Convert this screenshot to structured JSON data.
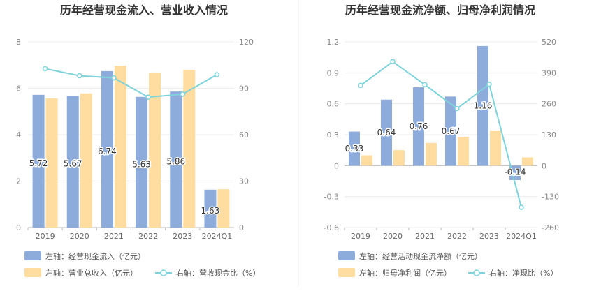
{
  "colors": {
    "bar1": "#8eacdb",
    "bar2": "#ffdda1",
    "line": "#7dd3d9",
    "grid": "#ececec",
    "axis": "#bbbbbb"
  },
  "chart_data": [
    {
      "type": "bar",
      "title": "历年经营现金流入、营业收入情况",
      "categories": [
        "2019",
        "2020",
        "2021",
        "2022",
        "2023",
        "2024Q1"
      ],
      "left_axis": {
        "ylim": [
          0,
          8
        ],
        "ticks": [
          "0",
          "2",
          "4",
          "6",
          "8"
        ]
      },
      "right_axis": {
        "ylim": [
          0,
          120
        ],
        "ticks": [
          "0",
          "30",
          "60",
          "90",
          "120"
        ]
      },
      "series": [
        {
          "name": "左轴：经营现金流入（亿元）",
          "axis": "left",
          "type": "bar",
          "values": [
            5.72,
            5.67,
            6.74,
            5.63,
            5.86,
            1.63
          ],
          "labels": [
            "5.72",
            "5.67",
            "6.74",
            "5.63",
            "5.86",
            "1.63"
          ]
        },
        {
          "name": "左轴：营业总收入（亿元）",
          "axis": "left",
          "type": "bar",
          "values": [
            5.57,
            5.78,
            6.97,
            6.68,
            6.8,
            1.65
          ]
        },
        {
          "name": "右轴：营收现金比（%）",
          "axis": "right",
          "type": "line",
          "values": [
            102.7,
            98.1,
            96.7,
            84.3,
            86.2,
            98.8
          ]
        }
      ]
    },
    {
      "type": "bar",
      "title": "历年经营现金流净额、归母净利润情况",
      "categories": [
        "2019",
        "2020",
        "2021",
        "2022",
        "2023",
        "2024Q1"
      ],
      "left_axis": {
        "ylim": [
          -0.6,
          1.2
        ],
        "ticks": [
          "-0.6",
          "-0.3",
          "0",
          "0.3",
          "0.6",
          "0.9",
          "1.2"
        ]
      },
      "right_axis": {
        "ylim": [
          -260,
          520
        ],
        "ticks": [
          "-260",
          "-130",
          "0",
          "130",
          "260",
          "390",
          "520"
        ]
      },
      "series": [
        {
          "name": "左轴：经营活动现金流净额（亿元）",
          "axis": "left",
          "type": "bar",
          "values": [
            0.33,
            0.64,
            0.76,
            0.67,
            1.16,
            -0.14
          ],
          "labels": [
            "0.33",
            "0.64",
            "0.76",
            "0.67",
            "1.16",
            "-0.14"
          ]
        },
        {
          "name": "左轴：归母净利润（亿元）",
          "axis": "left",
          "type": "bar",
          "values": [
            0.1,
            0.15,
            0.22,
            0.28,
            0.34,
            0.08
          ]
        },
        {
          "name": "右轴：净现比（%）",
          "axis": "right",
          "type": "line",
          "values": [
            337,
            437,
            340,
            240,
            342,
            -175
          ]
        }
      ]
    }
  ]
}
